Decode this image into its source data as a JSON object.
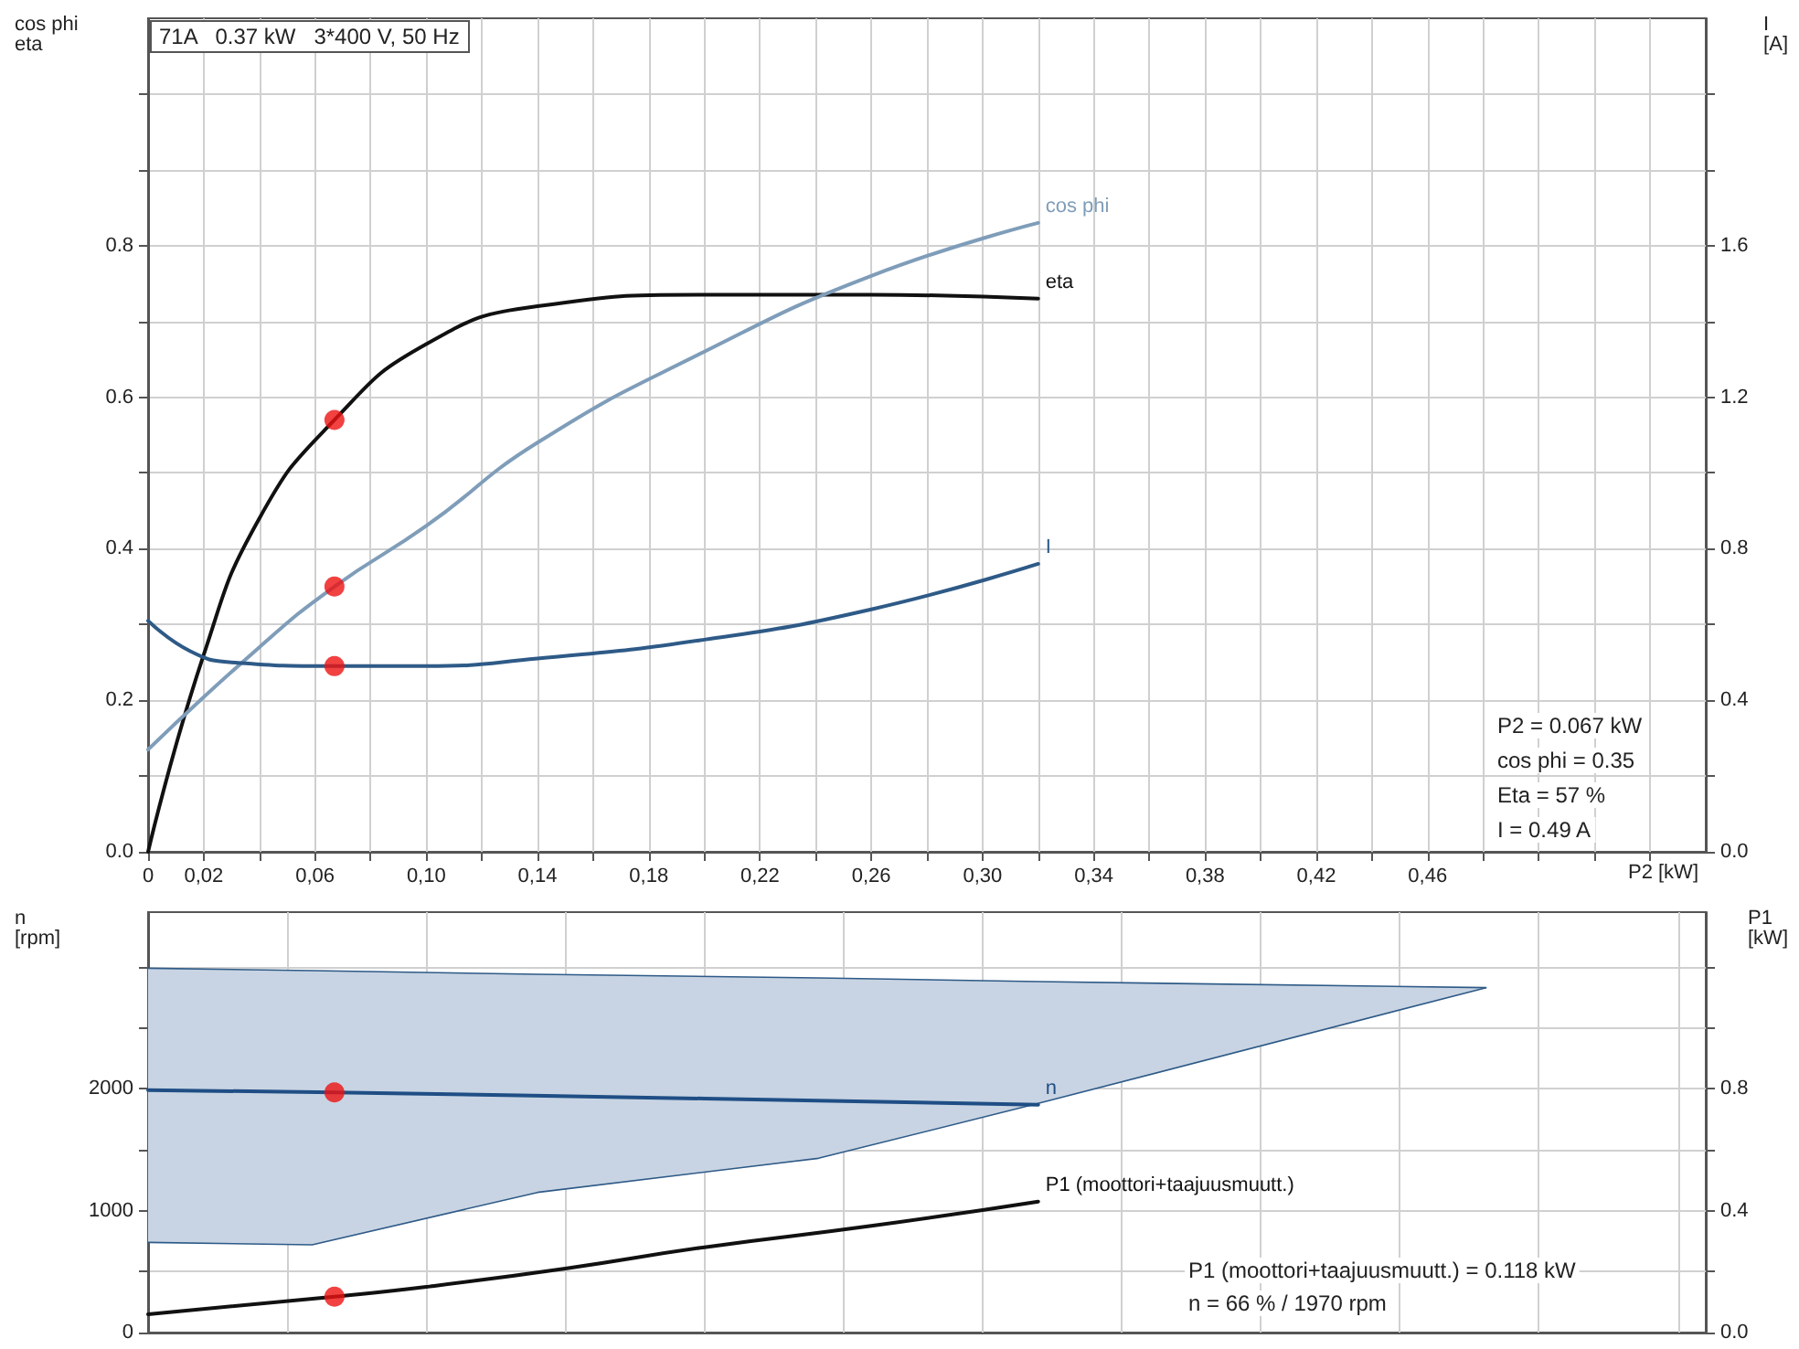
{
  "chart_data": [
    {
      "type": "line",
      "title": "71A   0.37 kW   3*400 V, 50 Hz",
      "xlabel": "P2 [kW]",
      "ylabel": "cos phi\neta",
      "y2label": "I\n[A]",
      "grid": true,
      "legend": false,
      "marker": "none",
      "xlim": [
        0,
        0.56
      ],
      "xticks": [
        {
          "value": 0,
          "label": "0"
        },
        {
          "value": 0.02,
          "label": "0,02"
        },
        {
          "value": 0.04,
          "label": null
        },
        {
          "value": 0.06,
          "label": "0,06"
        },
        {
          "value": 0.08,
          "label": null
        },
        {
          "value": 0.1,
          "label": "0,10"
        },
        {
          "value": 0.12,
          "label": null
        },
        {
          "value": 0.14,
          "label": "0,14"
        },
        {
          "value": 0.16,
          "label": null
        },
        {
          "value": 0.18,
          "label": "0,18"
        },
        {
          "value": 0.2,
          "label": null
        },
        {
          "value": 0.22,
          "label": "0,22"
        },
        {
          "value": 0.24,
          "label": null
        },
        {
          "value": 0.26,
          "label": "0,26"
        },
        {
          "value": 0.28,
          "label": null
        },
        {
          "value": 0.3,
          "label": "0,30"
        },
        {
          "value": 0.32,
          "label": null
        },
        {
          "value": 0.34,
          "label": "0,34"
        },
        {
          "value": 0.36,
          "label": null
        },
        {
          "value": 0.38,
          "label": "0,38"
        },
        {
          "value": 0.4,
          "label": null
        },
        {
          "value": 0.42,
          "label": "0,42"
        },
        {
          "value": 0.44,
          "label": null
        },
        {
          "value": 0.46,
          "label": "0,46"
        },
        {
          "value": 0.48,
          "label": null
        },
        {
          "value": 0.5,
          "label": null
        },
        {
          "value": 0.52,
          "label": null
        },
        {
          "value": 0.54,
          "label": null
        }
      ],
      "ylim": [
        0,
        1.1
      ],
      "yticks": [
        {
          "value": 0,
          "label": "0.0"
        },
        {
          "value": 0.1,
          "label": null
        },
        0.2,
        {
          "value": 0.3,
          "label": null
        },
        0.4,
        {
          "value": 0.5,
          "label": null
        },
        0.6,
        {
          "value": 0.7,
          "label": null
        },
        0.8,
        {
          "value": 0.9,
          "label": null
        },
        {
          "value": 1.0,
          "label": null
        }
      ],
      "y2lim": [
        0,
        2.2
      ],
      "y2ticks": [
        {
          "value": 0,
          "label": "0.0"
        },
        {
          "value": 0.2,
          "label": null
        },
        0.4,
        {
          "value": 0.6,
          "label": null
        },
        0.8,
        {
          "value": 1.0,
          "label": null
        },
        1.2,
        {
          "value": 1.4,
          "label": null
        },
        1.6,
        {
          "value": 1.8,
          "label": null
        },
        {
          "value": 2.0,
          "label": null
        }
      ],
      "series": [
        {
          "name": "eta",
          "color": "#111111",
          "x": [
            0,
            0.02,
            0.04,
            0.067,
            0.1,
            0.14,
            0.2,
            0.26,
            0.32
          ],
          "values": [
            0,
            0.26,
            0.44,
            0.57,
            0.67,
            0.72,
            0.735,
            0.735,
            0.73
          ]
        },
        {
          "name": "cos phi",
          "color": "#7f9db9",
          "x": [
            0,
            0.04,
            0.067,
            0.1,
            0.14,
            0.2,
            0.26,
            0.32
          ],
          "values": [
            0.135,
            0.27,
            0.35,
            0.43,
            0.54,
            0.66,
            0.76,
            0.83
          ]
        },
        {
          "name": "I",
          "color": "#2e5a87",
          "axis": "y2",
          "x": [
            0,
            0.015,
            0.03,
            0.067,
            0.1,
            0.14,
            0.2,
            0.26,
            0.32
          ],
          "values": [
            0.61,
            0.53,
            0.5,
            0.49,
            0.49,
            0.51,
            0.56,
            0.64,
            0.76
          ]
        },
        {
          "type": "scatter",
          "marker": "circle",
          "color": "#ee1111",
          "x": [
            0.067,
            0.067
          ],
          "values": [
            0.57,
            0.35
          ]
        },
        {
          "type": "scatter",
          "marker": "circle",
          "color": "#ee1111",
          "axis": "y2",
          "x": [
            0.067
          ],
          "values": [
            0.49
          ]
        }
      ],
      "annotations": [
        "P2 = 0.067 kW",
        "cos phi = 0.35",
        "Eta = 57 %",
        "I = 0.49 A"
      ]
    },
    {
      "type": "line",
      "ylabel": "n\n[rpm]",
      "y2label": "P1\n[kW]",
      "grid": true,
      "legend": false,
      "marker": "none",
      "tick_labels": "y",
      "xlim": [
        0,
        0.56
      ],
      "xticks": [
        {
          "value": 0.05,
          "label": null
        },
        {
          "value": 0.1,
          "label": null
        },
        {
          "value": 0.15,
          "label": null
        },
        {
          "value": 0.2,
          "label": null
        },
        {
          "value": 0.25,
          "label": null
        },
        {
          "value": 0.3,
          "label": null
        },
        {
          "value": 0.35,
          "label": null
        },
        {
          "value": 0.4,
          "label": null
        },
        {
          "value": 0.45,
          "label": null
        },
        {
          "value": 0.5,
          "label": null
        },
        {
          "value": 0.55,
          "label": null
        }
      ],
      "ylim": [
        0,
        3450
      ],
      "yticks": [
        0,
        {
          "value": 500,
          "label": null
        },
        1000,
        {
          "value": 1500,
          "label": null
        },
        2000,
        {
          "value": 2500,
          "label": null
        },
        {
          "value": 3000,
          "label": null
        }
      ],
      "y2lim": [
        0,
        1.38
      ],
      "y2ticks": [
        {
          "value": 0,
          "label": "0.0"
        },
        {
          "value": 0.2,
          "label": null
        },
        0.4,
        {
          "value": 0.6,
          "label": null
        },
        0.8,
        {
          "value": 1.0,
          "label": null
        },
        {
          "value": 1.2,
          "label": null
        }
      ],
      "series": [
        {
          "type": "area",
          "color": "#c8d4e3",
          "x": [
            0,
            0.059,
            0.14,
            0.241,
            0.32,
            0.481
          ],
          "values": [
            2990,
            2970,
            2940,
            2910,
            2880,
            2830
          ]
        },
        {
          "type": "line",
          "color": "#2e5a87",
          "x": [
            0,
            0.059,
            0.14,
            0.241,
            0.32,
            0.481
          ],
          "values": [
            740,
            720,
            1150,
            1430,
            1880,
            2830
          ]
        },
        {
          "name": "n",
          "color": "#1f4e85",
          "x": [
            0,
            0.067,
            0.2,
            0.32
          ],
          "values": [
            1990,
            1970,
            1920,
            1870
          ]
        },
        {
          "name": "P1 (moottori+taajuusmuutt.)",
          "color": "#111111",
          "axis": "y2",
          "x": [
            0,
            0.067,
            0.1,
            0.15,
            0.2,
            0.26,
            0.32
          ],
          "values": [
            0.06,
            0.118,
            0.15,
            0.21,
            0.28,
            0.35,
            0.43
          ]
        },
        {
          "type": "scatter",
          "marker": "circle",
          "color": "#ee1111",
          "x": [
            0.067
          ],
          "values": [
            1970
          ]
        },
        {
          "type": "scatter",
          "marker": "circle",
          "color": "#ee1111",
          "axis": "y2",
          "x": [
            0.067
          ],
          "values": [
            0.118
          ]
        }
      ],
      "annotations": [
        "P1 (moottori+taajuusmuutt.) = 0.118 kW",
        "n = 66 % / 1970 rpm"
      ]
    }
  ]
}
